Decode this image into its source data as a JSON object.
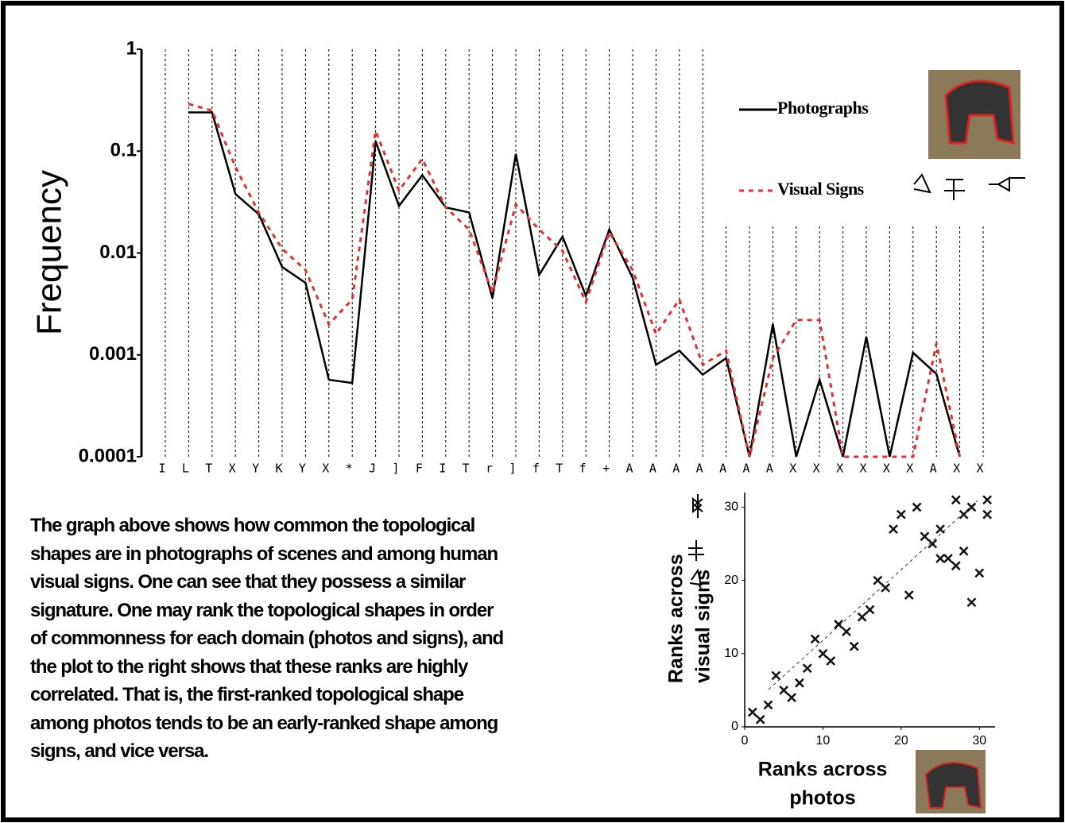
{
  "chart_data": [
    {
      "type": "line",
      "ylabel": "Frequency",
      "log_scale": true,
      "categories": [
        "I",
        "L",
        "T",
        "X",
        "Y",
        "K",
        "Y",
        "X",
        "*",
        "J",
        "]",
        "F",
        "I",
        "T",
        "r",
        "]",
        "f",
        "T",
        "f",
        "+",
        "A",
        "A",
        "A",
        "A",
        "A",
        "A",
        "A",
        "X",
        "X",
        "X",
        "X",
        "X",
        "X",
        "A",
        "X",
        "X"
      ],
      "ylim": [
        0.0001,
        1
      ],
      "yticks": [
        0.0001,
        0.001,
        0.01,
        0.1,
        1
      ],
      "legend": "upper right",
      "series": [
        {
          "name": "Photographs",
          "color": "#000000",
          "style": "solid",
          "values": [
            null,
            0.24,
            0.24,
            0.038,
            0.024,
            0.0073,
            0.0051,
            0.00057,
            0.00053,
            0.125,
            0.029,
            0.058,
            0.028,
            0.025,
            0.0036,
            0.094,
            0.0061,
            0.0145,
            0.0038,
            0.017,
            0.0057,
            0.0008,
            0.0011,
            0.00064,
            0.00093,
            0.0001,
            0.002,
            0.0001,
            0.00057,
            0.0001,
            0.0015,
            0.0001,
            0.00105,
            0.00065,
            0.0001,
            null
          ]
        },
        {
          "name": "Visual Signs",
          "color": "#e03030",
          "style": "dotted",
          "values": [
            null,
            0.29,
            0.25,
            0.07,
            0.025,
            0.011,
            0.0068,
            0.002,
            0.0035,
            0.158,
            0.041,
            0.084,
            0.028,
            0.017,
            0.0041,
            0.03,
            0.017,
            0.0105,
            0.0033,
            0.016,
            0.0068,
            0.0016,
            0.0035,
            0.0008,
            0.0011,
            0.0001,
            0.00093,
            0.0022,
            0.0022,
            0.0001,
            0.0001,
            0.0001,
            0.0001,
            0.0013,
            0.0001,
            null
          ]
        }
      ]
    },
    {
      "type": "scatter",
      "xlabel": [
        "Ranks across",
        "photos"
      ],
      "ylabel": [
        "Ranks across",
        "visual signs"
      ],
      "x": [
        1,
        2,
        3,
        4,
        5,
        6,
        7,
        8,
        9,
        10,
        11,
        12,
        13,
        14,
        15,
        16,
        17,
        18,
        19,
        20,
        21,
        22,
        23,
        24,
        25,
        26,
        27,
        28,
        29,
        30,
        27,
        28,
        29,
        31,
        31,
        25
      ],
      "values": [
        2,
        1,
        3,
        7,
        5,
        4,
        6,
        8,
        12,
        10,
        9,
        14,
        13,
        11,
        15,
        16,
        20,
        19,
        27,
        29,
        18,
        30,
        26,
        25,
        27,
        23,
        22,
        24,
        17,
        21,
        31,
        29,
        30,
        31,
        29,
        23
      ],
      "xlim": [
        0,
        32
      ],
      "ylim": [
        0,
        32
      ],
      "xticks": [
        0,
        10,
        20,
        30
      ],
      "yticks": [
        0,
        10,
        20,
        30
      ],
      "color": "#111111"
    }
  ],
  "caption": [
    "The graph above shows how common the topological",
    "shapes are in photographs of scenes and among human",
    "visual signs. One can see that they possess a similar",
    "signature. One may rank the topological shapes in order",
    "of commonness for each domain (photos and signs), and",
    "the plot to the right shows that these ranks are highly",
    "correlated. That is, the first-ranked topological shape",
    "among photos tends to be an early-ranked shape among",
    "signs, and vice versa."
  ]
}
